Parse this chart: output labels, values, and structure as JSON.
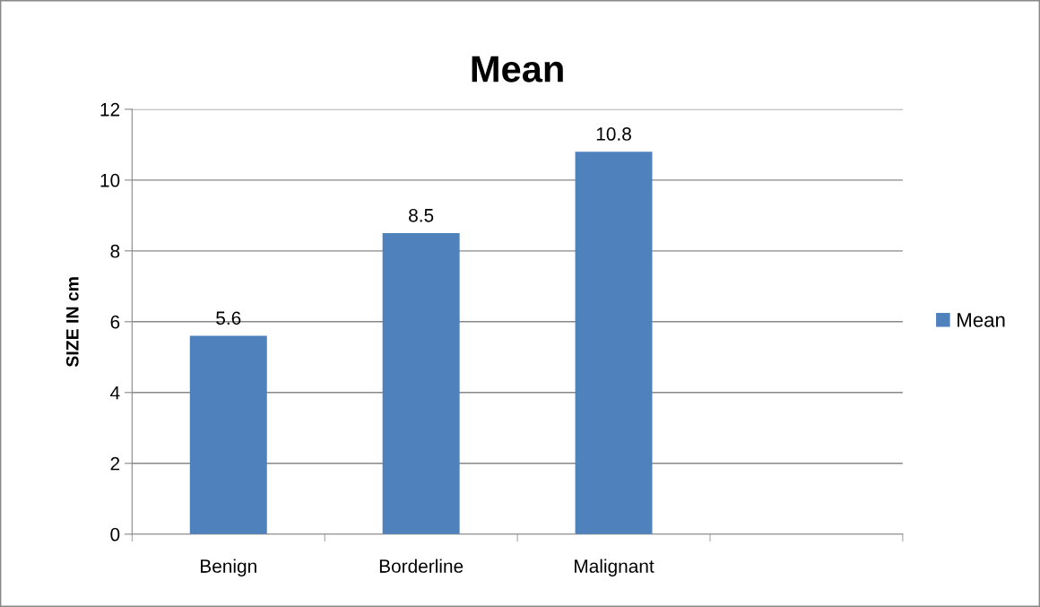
{
  "chart_data": {
    "type": "bar",
    "title": "Mean",
    "ylabel": "SIZE IN cm",
    "categories": [
      "Benign",
      "Borderline",
      "Malignant",
      null
    ],
    "series": [
      {
        "name": "Mean",
        "color": "#4f81bd",
        "values": [
          5.6,
          8.5,
          10.8,
          null
        ]
      }
    ],
    "ylim": [
      0,
      12
    ],
    "yticks": [
      0,
      2,
      4,
      6,
      8,
      10,
      12
    ],
    "grid": "y",
    "legend": "right",
    "data_labels": true
  }
}
